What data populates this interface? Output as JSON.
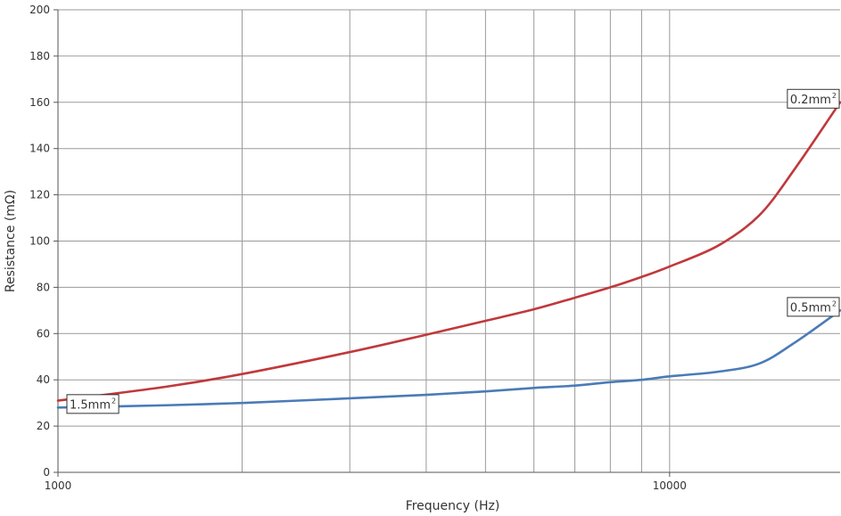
{
  "chart_data": {
    "type": "line",
    "title": "",
    "xlabel": "Frequency (Hz)",
    "ylabel": "Resistance (mΩ)",
    "x_scale": "log",
    "xlim": [
      1000,
      19000
    ],
    "ylim": [
      0,
      200
    ],
    "y_ticks": [
      0,
      20,
      40,
      60,
      80,
      100,
      120,
      140,
      160,
      180,
      200
    ],
    "x_tick_labels": [
      {
        "value": 1000,
        "label": "1000"
      },
      {
        "value": 10000,
        "label": "10000"
      }
    ],
    "x_gridlines": [
      1000,
      2000,
      3000,
      4000,
      5000,
      6000,
      7000,
      8000,
      9000,
      10000
    ],
    "grid": true,
    "legend": "none",
    "series": [
      {
        "name": "0.2mm²",
        "color": "#c0393b",
        "x": [
          1000,
          1500,
          2000,
          3000,
          4000,
          5000,
          6000,
          7000,
          8000,
          9000,
          10000,
          12000,
          14000,
          16000,
          19000
        ],
        "y": [
          31,
          37,
          42.5,
          52,
          59.5,
          65.5,
          70.5,
          75.5,
          80,
          84.5,
          89,
          98,
          111,
          131,
          160
        ]
      },
      {
        "name": "0.5mm²",
        "color": "#4a7bb7",
        "x": [
          1000,
          1500,
          2000,
          3000,
          4000,
          5000,
          6000,
          7000,
          8000,
          9000,
          10000,
          12000,
          14000,
          16000,
          19000
        ],
        "y": [
          28,
          29,
          30,
          32,
          33.5,
          35,
          36.5,
          37.5,
          39,
          40,
          41.5,
          43.5,
          47,
          56,
          70
        ]
      }
    ],
    "annotations": [
      {
        "text": "0.2mm",
        "sup": "2",
        "series": "0.2mm²",
        "anchor": "end"
      },
      {
        "text": "0.5mm",
        "sup": "2",
        "series": "0.5mm²",
        "anchor": "end"
      },
      {
        "text": "1.5mm",
        "sup": "2",
        "series": "0.5mm²",
        "anchor": "start"
      }
    ]
  }
}
